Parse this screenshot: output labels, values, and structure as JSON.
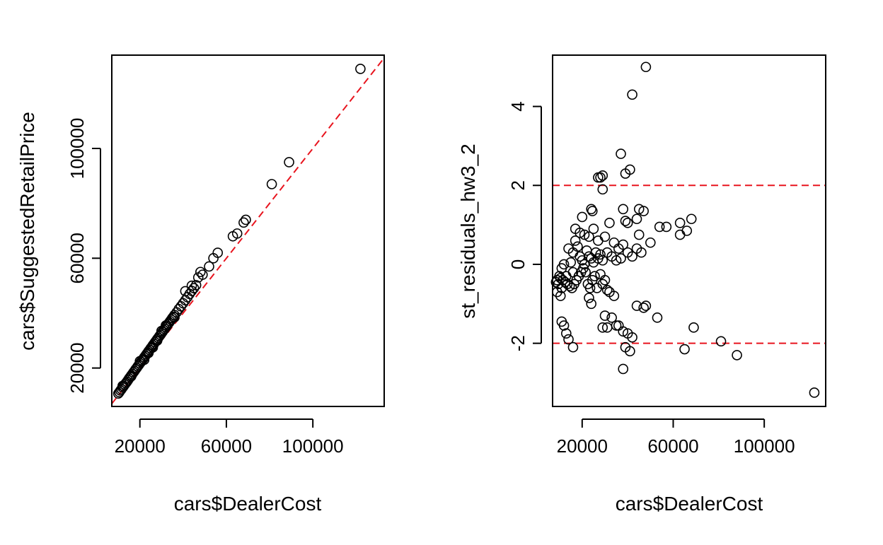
{
  "colors": {
    "point": "#000000",
    "reference_line": "#e8141e",
    "frame": "#000000"
  },
  "chart_data": [
    {
      "type": "scatter",
      "title": "",
      "xlabel": "cars$DealerCost",
      "ylabel": "cars$SuggestedRetailPrice",
      "xlim": [
        7000,
        133000
      ],
      "ylim": [
        6000,
        134000
      ],
      "xticks": [
        20000,
        60000,
        100000
      ],
      "yticks": [
        20000,
        60000,
        100000
      ],
      "xtick_labels": [
        "20000",
        "60000",
        "100000"
      ],
      "ytick_labels": [
        "20000",
        "60000",
        "100000"
      ],
      "reference_lines": [
        {
          "kind": "identity",
          "intercept": 0,
          "slope": 1,
          "style": "dashed",
          "color": "#e8141e"
        }
      ],
      "points": [
        [
          10000,
          10700
        ],
        [
          10500,
          11200
        ],
        [
          11000,
          11800
        ],
        [
          11500,
          12300
        ],
        [
          12000,
          12900
        ],
        [
          12500,
          13400
        ],
        [
          13000,
          14000
        ],
        [
          13500,
          14500
        ],
        [
          14000,
          15000
        ],
        [
          14500,
          15600
        ],
        [
          15000,
          16200
        ],
        [
          15500,
          16700
        ],
        [
          16000,
          17300
        ],
        [
          16500,
          17800
        ],
        [
          17000,
          18400
        ],
        [
          17500,
          18900
        ],
        [
          18000,
          19500
        ],
        [
          18500,
          20000
        ],
        [
          19000,
          20600
        ],
        [
          19500,
          21100
        ],
        [
          20000,
          21700
        ],
        [
          20500,
          22200
        ],
        [
          21000,
          22800
        ],
        [
          21500,
          23300
        ],
        [
          22000,
          23900
        ],
        [
          22500,
          24400
        ],
        [
          23000,
          25000
        ],
        [
          23500,
          25500
        ],
        [
          24000,
          26100
        ],
        [
          24500,
          26600
        ],
        [
          25000,
          27200
        ],
        [
          25500,
          27700
        ],
        [
          26000,
          28300
        ],
        [
          26500,
          28800
        ],
        [
          27000,
          29400
        ],
        [
          27500,
          29900
        ],
        [
          28000,
          30500
        ],
        [
          28500,
          31000
        ],
        [
          29000,
          31600
        ],
        [
          29500,
          32100
        ],
        [
          30000,
          32700
        ],
        [
          30500,
          33200
        ],
        [
          31000,
          33800
        ],
        [
          31500,
          34300
        ],
        [
          32000,
          34900
        ],
        [
          32500,
          35400
        ],
        [
          33000,
          36000
        ],
        [
          33500,
          36500
        ],
        [
          34000,
          37100
        ],
        [
          34500,
          37600
        ],
        [
          35000,
          38200
        ],
        [
          35500,
          38700
        ],
        [
          36000,
          39300
        ],
        [
          37000,
          40300
        ],
        [
          38000,
          41500
        ],
        [
          39000,
          42500
        ],
        [
          40000,
          43600
        ],
        [
          41000,
          44700
        ],
        [
          42000,
          45800
        ],
        [
          43000,
          47000
        ],
        [
          44000,
          48100
        ],
        [
          45000,
          49100
        ],
        [
          46000,
          50200
        ],
        [
          41000,
          48000
        ],
        [
          44000,
          50000
        ],
        [
          47000,
          53000
        ],
        [
          49000,
          54000
        ],
        [
          48000,
          55000
        ],
        [
          52000,
          57000
        ],
        [
          54000,
          60000
        ],
        [
          56000,
          62000
        ],
        [
          63000,
          68000
        ],
        [
          65000,
          69000
        ],
        [
          68000,
          73000
        ],
        [
          69000,
          74000
        ],
        [
          81000,
          87000
        ],
        [
          89000,
          95000
        ],
        [
          122000,
          129000
        ],
        [
          12000,
          13500
        ],
        [
          16000,
          17000
        ],
        [
          20000,
          22500
        ],
        [
          24000,
          25500
        ],
        [
          28000,
          30000
        ],
        [
          32000,
          35500
        ],
        [
          36000,
          38500
        ],
        [
          30000,
          33500
        ],
        [
          26000,
          27500
        ],
        [
          22000,
          23000
        ]
      ]
    },
    {
      "type": "scatter",
      "title": "",
      "xlabel": "cars$DealerCost",
      "ylabel": "st_residuals_hw3_2",
      "xlim": [
        7000,
        127000
      ],
      "ylim": [
        -3.6,
        5.3
      ],
      "xticks": [
        20000,
        60000,
        100000
      ],
      "yticks": [
        -2,
        0,
        2,
        4
      ],
      "xtick_labels": [
        "20000",
        "60000",
        "100000"
      ],
      "ytick_labels": [
        "-2",
        "0",
        "2",
        "4"
      ],
      "reference_lines": [
        {
          "kind": "horizontal",
          "y": 2,
          "style": "dashed",
          "color": "#e8141e"
        },
        {
          "kind": "horizontal",
          "y": -2,
          "style": "dashed",
          "color": "#e8141e"
        }
      ],
      "points": [
        [
          48000,
          5.0
        ],
        [
          42000,
          4.3
        ],
        [
          37000,
          2.8
        ],
        [
          41000,
          2.4
        ],
        [
          39000,
          2.3
        ],
        [
          29000,
          2.25
        ],
        [
          28000,
          2.2
        ],
        [
          27000,
          2.2
        ],
        [
          29000,
          1.9
        ],
        [
          38000,
          1.4
        ],
        [
          45000,
          1.4
        ],
        [
          47000,
          1.35
        ],
        [
          24000,
          1.4
        ],
        [
          24500,
          1.35
        ],
        [
          20000,
          1.2
        ],
        [
          44000,
          1.15
        ],
        [
          39000,
          1.1
        ],
        [
          40000,
          1.05
        ],
        [
          32000,
          1.05
        ],
        [
          54000,
          0.95
        ],
        [
          57000,
          0.95
        ],
        [
          63000,
          1.05
        ],
        [
          68000,
          1.15
        ],
        [
          66000,
          0.85
        ],
        [
          63000,
          0.75
        ],
        [
          45000,
          0.75
        ],
        [
          50000,
          0.55
        ],
        [
          17000,
          0.9
        ],
        [
          19000,
          0.8
        ],
        [
          21000,
          0.75
        ],
        [
          23000,
          0.7
        ],
        [
          25000,
          0.9
        ],
        [
          27000,
          0.6
        ],
        [
          30000,
          0.7
        ],
        [
          34000,
          0.55
        ],
        [
          36000,
          0.4
        ],
        [
          38000,
          0.5
        ],
        [
          14000,
          0.4
        ],
        [
          16000,
          0.3
        ],
        [
          18000,
          0.45
        ],
        [
          22000,
          0.35
        ],
        [
          26000,
          0.3
        ],
        [
          28000,
          0.25
        ],
        [
          31000,
          0.3
        ],
        [
          33000,
          0.2
        ],
        [
          37000,
          0.15
        ],
        [
          40000,
          0.3
        ],
        [
          42000,
          0.2
        ],
        [
          44000,
          0.4
        ],
        [
          46000,
          0.3
        ],
        [
          35000,
          0.1
        ],
        [
          29000,
          0.1
        ],
        [
          24000,
          0.15
        ],
        [
          20000,
          0.1
        ],
        [
          15000,
          0.05
        ],
        [
          12000,
          0.0
        ],
        [
          11000,
          -0.1
        ],
        [
          10000,
          -0.3
        ],
        [
          9000,
          -0.4
        ],
        [
          8500,
          -0.45
        ],
        [
          9500,
          -0.5
        ],
        [
          10500,
          -0.35
        ],
        [
          11500,
          -0.4
        ],
        [
          12500,
          -0.45
        ],
        [
          13500,
          -0.5
        ],
        [
          14500,
          -0.55
        ],
        [
          15500,
          -0.6
        ],
        [
          16500,
          -0.5
        ],
        [
          17500,
          -0.4
        ],
        [
          18500,
          -0.3
        ],
        [
          19500,
          -0.2
        ],
        [
          20500,
          -0.1
        ],
        [
          21500,
          -0.2
        ],
        [
          22500,
          -0.5
        ],
        [
          23500,
          -0.6
        ],
        [
          24500,
          -0.4
        ],
        [
          25500,
          -0.3
        ],
        [
          26500,
          -0.6
        ],
        [
          28000,
          -0.25
        ],
        [
          30000,
          -0.4
        ],
        [
          32000,
          -0.7
        ],
        [
          34000,
          -0.8
        ],
        [
          9000,
          -0.7
        ],
        [
          10500,
          -0.8
        ],
        [
          11000,
          -0.6
        ],
        [
          13000,
          -0.3
        ],
        [
          16000,
          -0.2
        ],
        [
          23000,
          -0.85
        ],
        [
          24000,
          -1.0
        ],
        [
          29000,
          -0.5
        ],
        [
          31000,
          -0.65
        ],
        [
          17000,
          0.6
        ],
        [
          19000,
          0.2
        ],
        [
          21000,
          0.0
        ],
        [
          23000,
          0.2
        ],
        [
          25000,
          0.05
        ],
        [
          27000,
          0.15
        ],
        [
          44000,
          -1.05
        ],
        [
          48000,
          -1.05
        ],
        [
          47000,
          -1.1
        ],
        [
          53000,
          -1.35
        ],
        [
          30000,
          -1.3
        ],
        [
          33000,
          -1.35
        ],
        [
          11000,
          -1.45
        ],
        [
          12000,
          -1.55
        ],
        [
          13000,
          -1.75
        ],
        [
          14000,
          -1.9
        ],
        [
          16000,
          -2.1
        ],
        [
          29000,
          -1.6
        ],
        [
          31000,
          -1.6
        ],
        [
          35000,
          -1.55
        ],
        [
          36000,
          -1.55
        ],
        [
          38000,
          -1.7
        ],
        [
          40000,
          -1.75
        ],
        [
          42000,
          -1.85
        ],
        [
          39000,
          -2.1
        ],
        [
          41000,
          -2.2
        ],
        [
          65000,
          -2.15
        ],
        [
          69000,
          -1.6
        ],
        [
          81000,
          -1.95
        ],
        [
          88000,
          -2.3
        ],
        [
          38000,
          -2.65
        ],
        [
          122000,
          -3.25
        ]
      ]
    }
  ]
}
